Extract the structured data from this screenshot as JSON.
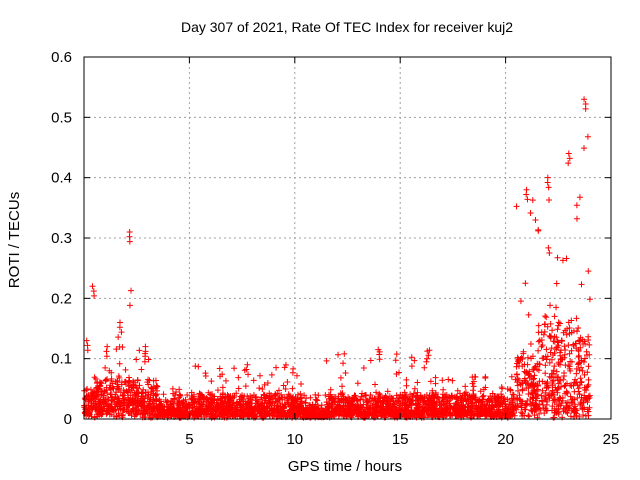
{
  "chart_data": {
    "type": "scatter",
    "title": "Day 307 of 2021, Rate Of TEC Index for receiver kuj2",
    "xlabel": "GPS time / hours",
    "ylabel": "ROTI / TECUs",
    "xlim": [
      0,
      25
    ],
    "ylim": [
      0,
      0.6
    ],
    "xticks": [
      0,
      5,
      10,
      15,
      20,
      25
    ],
    "yticks": [
      0,
      0.1,
      0.2,
      0.3,
      0.4,
      0.5,
      0.6
    ],
    "xtick_labels": [
      "0",
      "5",
      "10",
      "15",
      "20",
      "25"
    ],
    "ytick_labels": [
      "0",
      "0.1",
      "0.2",
      "0.3",
      "0.4",
      "0.5",
      "0.6"
    ],
    "grid": true,
    "marker": "plus",
    "color": "#ff0000",
    "series": [
      {
        "name": "ROTI",
        "segments": [
          {
            "x0": 0.0,
            "x1": 0.3,
            "base": 0.02,
            "spread": 0.04,
            "peak": 0.13
          },
          {
            "x0": 0.3,
            "x1": 0.6,
            "base": 0.03,
            "spread": 0.05,
            "peak": 0.22
          },
          {
            "x0": 0.6,
            "x1": 1.5,
            "base": 0.02,
            "spread": 0.05,
            "peak": 0.12
          },
          {
            "x0": 1.5,
            "x1": 2.0,
            "base": 0.03,
            "spread": 0.05,
            "peak": 0.16
          },
          {
            "x0": 2.0,
            "x1": 2.4,
            "base": 0.03,
            "spread": 0.06,
            "peak": 0.31
          },
          {
            "x0": 2.4,
            "x1": 3.5,
            "base": 0.02,
            "spread": 0.05,
            "peak": 0.12
          },
          {
            "x0": 3.5,
            "x1": 5.0,
            "base": 0.01,
            "spread": 0.025,
            "peak": 0.05
          },
          {
            "x0": 5.0,
            "x1": 10.5,
            "base": 0.01,
            "spread": 0.035,
            "peak": 0.09
          },
          {
            "x0": 10.5,
            "x1": 11.5,
            "base": 0.005,
            "spread": 0.02,
            "peak": 0.04
          },
          {
            "x0": 11.5,
            "x1": 16.5,
            "base": 0.01,
            "spread": 0.035,
            "peak": 0.115
          },
          {
            "x0": 16.5,
            "x1": 20.5,
            "base": 0.01,
            "spread": 0.035,
            "peak": 0.07
          },
          {
            "x0": 20.5,
            "x1": 21.5,
            "base": 0.02,
            "spread": 0.1,
            "peak": 0.38
          },
          {
            "x0": 21.5,
            "x1": 22.5,
            "base": 0.03,
            "spread": 0.15,
            "peak": 0.4
          },
          {
            "x0": 22.5,
            "x1": 23.5,
            "base": 0.02,
            "spread": 0.15,
            "peak": 0.44
          },
          {
            "x0": 23.5,
            "x1": 24.0,
            "base": 0.02,
            "spread": 0.13,
            "peak": 0.53
          }
        ]
      }
    ]
  }
}
